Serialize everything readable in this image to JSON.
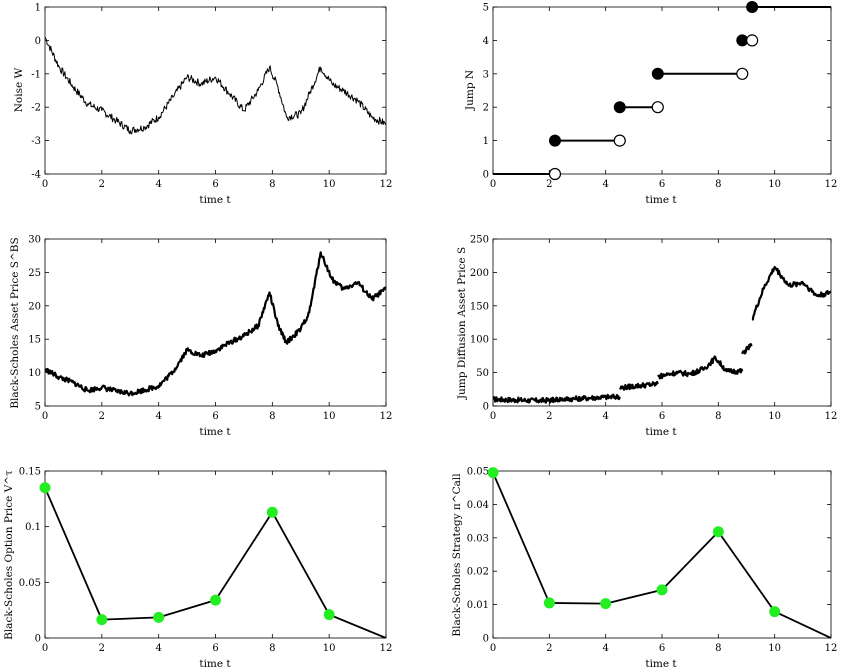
{
  "chart_data": [
    {
      "type": "line",
      "xlabel": "time t",
      "ylabel": "Noise W",
      "xlim": [
        0,
        12
      ],
      "ylim": [
        -4,
        1
      ],
      "xticks": [
        0,
        2,
        4,
        6,
        8,
        10,
        12
      ],
      "yticks": [
        -4,
        -3,
        -2,
        -1,
        0,
        1
      ],
      "line_width": "thin",
      "series": [
        {
          "x": [
            0,
            0.5,
            1,
            1.5,
            2,
            2.5,
            3,
            3.5,
            4,
            4.5,
            5,
            5.5,
            6,
            6.5,
            7,
            7.5,
            7.9,
            8.2,
            8.5,
            9,
            9.3,
            9.7,
            10.1,
            10.5,
            11,
            11.5,
            12
          ],
          "y": [
            0.1,
            -0.8,
            -1.4,
            -1.9,
            -2.1,
            -2.4,
            -2.7,
            -2.6,
            -2.3,
            -1.7,
            -1.1,
            -1.3,
            -1.1,
            -1.6,
            -2.1,
            -1.5,
            -0.8,
            -1.4,
            -2.3,
            -2.2,
            -1.6,
            -0.8,
            -1.3,
            -1.5,
            -1.8,
            -2.3,
            -2.5
          ]
        }
      ]
    },
    {
      "type": "step",
      "xlabel": "time t",
      "ylabel": "Jump N",
      "xlim": [
        0,
        12
      ],
      "ylim": [
        0,
        5
      ],
      "xticks": [
        0,
        2,
        4,
        6,
        8,
        10,
        12
      ],
      "yticks": [
        0,
        1,
        2,
        3,
        4,
        5
      ],
      "jump_times": [
        2.2,
        4.5,
        5.85,
        8.85,
        9.2
      ],
      "levels": [
        0,
        1,
        2,
        3,
        4,
        5
      ]
    },
    {
      "type": "line",
      "xlabel": "time t",
      "ylabel": "Black-Scholes Asset Price S^BS",
      "xlim": [
        0,
        12
      ],
      "ylim": [
        5,
        30
      ],
      "xticks": [
        0,
        2,
        4,
        6,
        8,
        10,
        12
      ],
      "yticks": [
        5,
        10,
        15,
        20,
        25,
        30
      ],
      "line_width": "thick",
      "series": [
        {
          "x": [
            0,
            0.5,
            1,
            1.5,
            2,
            2.5,
            3,
            3.5,
            4,
            4.5,
            5,
            5.5,
            6,
            6.5,
            7,
            7.5,
            7.9,
            8.2,
            8.5,
            9,
            9.3,
            9.7,
            10.1,
            10.5,
            11,
            11.5,
            12
          ],
          "y": [
            10.5,
            9.3,
            8.5,
            7.3,
            7.8,
            7.2,
            6.9,
            7.4,
            8,
            10.1,
            13.4,
            12.5,
            13.3,
            14.5,
            15.5,
            17,
            22,
            17,
            14.5,
            16.5,
            19,
            28,
            24,
            22.5,
            23.5,
            21,
            22.5
          ]
        }
      ]
    },
    {
      "type": "line",
      "xlabel": "time t",
      "ylabel": "Jump Diffusion Asset Price S",
      "xlim": [
        0,
        12
      ],
      "ylim": [
        0,
        250
      ],
      "xticks": [
        0,
        2,
        4,
        6,
        8,
        10,
        12
      ],
      "yticks": [
        0,
        50,
        100,
        150,
        200,
        250
      ],
      "line_width": "thick",
      "segments": [
        {
          "x": [
            0,
            0.8,
            1.6,
            2.2
          ],
          "y": [
            10,
            9,
            8,
            9
          ]
        },
        {
          "x": [
            2.2,
            3,
            3.8,
            4.5
          ],
          "y": [
            10,
            11,
            13,
            14
          ]
        },
        {
          "x": [
            4.5,
            5.1,
            5.85
          ],
          "y": [
            27,
            30,
            33
          ]
        },
        {
          "x": [
            5.85,
            6.5,
            7,
            7.5,
            7.9,
            8.3,
            8.85
          ],
          "y": [
            44,
            50,
            48,
            56,
            72,
            52,
            52
          ]
        },
        {
          "x": [
            8.85,
            9.2
          ],
          "y": [
            78,
            92
          ]
        },
        {
          "x": [
            9.2,
            9.6,
            10,
            10.5,
            11,
            11.5,
            12
          ],
          "y": [
            130,
            175,
            208,
            180,
            185,
            165,
            170
          ]
        }
      ]
    },
    {
      "type": "line",
      "xlabel": "time t",
      "ylabel": "Black-Scholes Option Price V^τ",
      "xlim": [
        0,
        12
      ],
      "ylim": [
        0,
        0.15
      ],
      "xticks": [
        0,
        2,
        4,
        6,
        8,
        10,
        12
      ],
      "yticks": [
        0,
        0.05,
        0.1,
        0.15
      ],
      "marker_color": "#22ee22",
      "series": [
        {
          "x": [
            0,
            2,
            4,
            6,
            8,
            10,
            12
          ],
          "y": [
            0.135,
            0.0165,
            0.0185,
            0.034,
            0.113,
            0.021,
            0
          ],
          "marked": [
            true,
            true,
            true,
            true,
            true,
            true,
            false
          ]
        }
      ]
    },
    {
      "type": "line",
      "xlabel": "time t",
      "ylabel": "Black-Scholes Strategy π^Call",
      "xlim": [
        0,
        12
      ],
      "ylim": [
        0,
        0.05
      ],
      "xticks": [
        0,
        2,
        4,
        6,
        8,
        10,
        12
      ],
      "yticks": [
        0,
        0.01,
        0.02,
        0.03,
        0.04,
        0.05
      ],
      "marker_color": "#22ee22",
      "series": [
        {
          "x": [
            0,
            2,
            4,
            6,
            8,
            10,
            12
          ],
          "y": [
            0.0495,
            0.0105,
            0.0103,
            0.0144,
            0.0318,
            0.0079,
            0
          ],
          "marked": [
            true,
            true,
            true,
            true,
            true,
            true,
            false
          ]
        }
      ]
    }
  ]
}
